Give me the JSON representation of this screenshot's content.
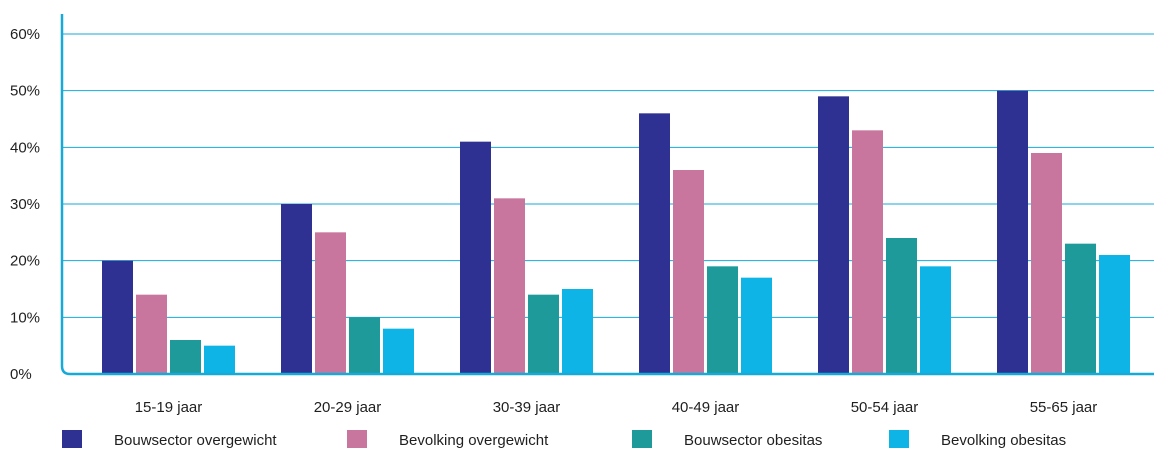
{
  "chart_data": {
    "type": "bar",
    "title": "",
    "xlabel": "",
    "ylabel": "",
    "categories": [
      "15-19 jaar",
      "20-29 jaar",
      "30-39 jaar",
      "40-49 jaar",
      "50-54 jaar",
      "55-65 jaar"
    ],
    "series": [
      {
        "name": "Bouwsector overgewicht",
        "color": "#2e3192",
        "values": [
          20,
          30,
          41,
          46,
          49,
          50
        ]
      },
      {
        "name": "Bevolking overgewicht",
        "color": "#c8769e",
        "values": [
          14,
          25,
          31,
          36,
          43,
          39
        ]
      },
      {
        "name": "Bouwsector obesitas",
        "color": "#1e9a9a",
        "values": [
          6,
          10,
          14,
          19,
          24,
          23
        ]
      },
      {
        "name": "Bevolking obesitas",
        "color": "#0fb4e6",
        "values": [
          5,
          8,
          15,
          17,
          19,
          21
        ]
      }
    ],
    "ylim": [
      0,
      60
    ],
    "yticks": [
      0,
      10,
      20,
      30,
      40,
      50,
      60
    ],
    "ytick_labels": [
      "0%",
      "10%",
      "20%",
      "30%",
      "40%",
      "50%",
      "60%"
    ],
    "grid": true,
    "grid_color": "#17a9d8",
    "axis_color": "#17a9d8",
    "legend_position": "bottom"
  }
}
